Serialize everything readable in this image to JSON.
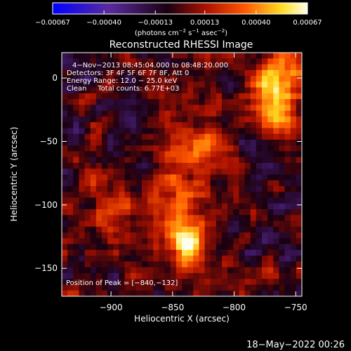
{
  "chart_data": {
    "type": "heatmap",
    "title": "Reconstructed RHESSI Image",
    "xlabel": "Heliocentric X (arcsec)",
    "ylabel": "Heliocentric Y (arcsec)",
    "xlim": [
      -940,
      -745
    ],
    "ylim": [
      -172,
      20
    ],
    "x_ticks": [
      -900,
      -850,
      -800,
      -750
    ],
    "y_ticks": [
      0,
      -50,
      -100,
      -150
    ],
    "x_tick_labels": [
      "−900",
      "−850",
      "−800",
      "−750"
    ],
    "y_tick_labels": [
      "0",
      "−50",
      "−100",
      "−150"
    ],
    "colorbar": {
      "range": [
        -0.00067,
        0.00067
      ],
      "tick_values": [
        -0.00067,
        -0.0004,
        -0.00013,
        0.00013,
        0.0004,
        0.00067
      ],
      "tick_labels": [
        "−0.00067",
        "−0.00040",
        "−0.00013",
        "0.00013",
        "0.00040",
        "0.00067"
      ],
      "units_prefix": "(photons cm",
      "units_exp1": "−2",
      "units_mid": " s",
      "units_exp2": "−1",
      "units_mid2": " asec",
      "units_exp3": "−2",
      "units_suffix": ")"
    },
    "info_lines": [
      "4−Nov−2013 08:45:04.000 to 08:48:20.000",
      "Detectors: 3F 4F 5F 6F 7F 8F, Att 0",
      "Energy Range: 12.0 − 25.0 keV",
      "Clean     Total counts: 6.77E+03"
    ],
    "peak_label": "Position of Peak = [−840,−132]",
    "peak": [
      -840,
      -132
    ],
    "sources": [
      {
        "x": -840,
        "y": -132,
        "amp": 1.0,
        "sx": 9,
        "sy": 12
      },
      {
        "x": -765,
        "y": -10,
        "amp": 0.85,
        "sx": 12,
        "sy": 22
      },
      {
        "x": -845,
        "y": -80,
        "amp": 0.45,
        "sx": 14,
        "sy": 35
      },
      {
        "x": -900,
        "y": -105,
        "amp": 0.3,
        "sx": 18,
        "sy": 18
      },
      {
        "x": -820,
        "y": -60,
        "amp": 0.35,
        "sx": 10,
        "sy": 12
      }
    ],
    "grid": false
  },
  "footer": {
    "date": "18−May−2022 00:26"
  }
}
